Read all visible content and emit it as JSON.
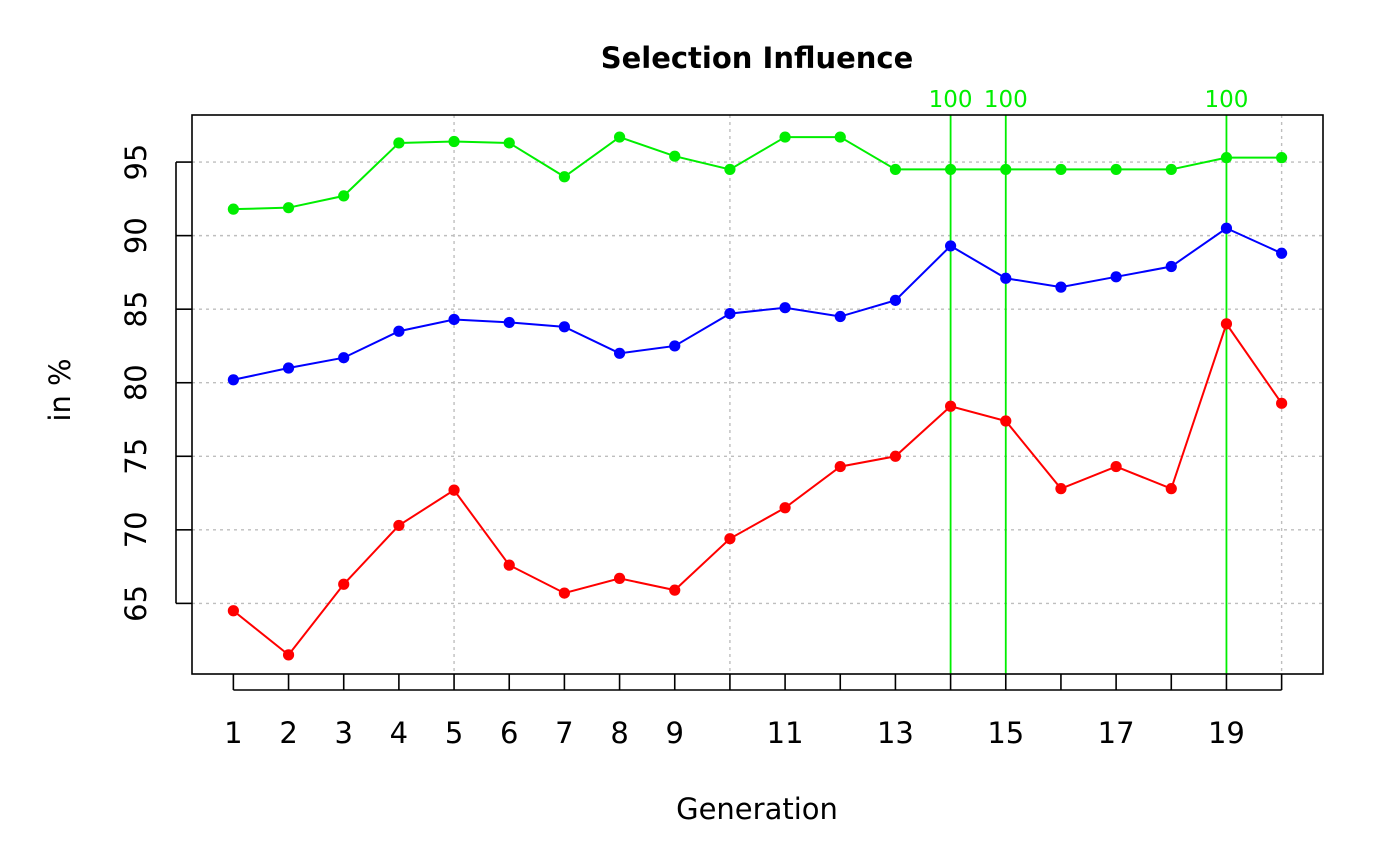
{
  "chart_data": {
    "type": "line",
    "title": "Selection Influence",
    "xlabel": "Generation",
    "ylabel": "in %",
    "xlim": [
      0.25,
      20.75
    ],
    "ylim": [
      60.2,
      98.2
    ],
    "x": [
      1,
      2,
      3,
      4,
      5,
      6,
      7,
      8,
      9,
      10,
      11,
      12,
      13,
      14,
      15,
      16,
      17,
      18,
      19,
      20
    ],
    "x_tick_labels": [
      {
        "x": 1,
        "label": "1"
      },
      {
        "x": 2,
        "label": "2"
      },
      {
        "x": 3,
        "label": "3"
      },
      {
        "x": 4,
        "label": "4"
      },
      {
        "x": 5,
        "label": "5"
      },
      {
        "x": 6,
        "label": "6"
      },
      {
        "x": 7,
        "label": "7"
      },
      {
        "x": 8,
        "label": "8"
      },
      {
        "x": 9,
        "label": "9"
      },
      {
        "x": 11,
        "label": "11"
      },
      {
        "x": 13,
        "label": "13"
      },
      {
        "x": 15,
        "label": "15"
      },
      {
        "x": 17,
        "label": "17"
      },
      {
        "x": 19,
        "label": "19"
      }
    ],
    "y_ticks": [
      65,
      70,
      75,
      80,
      85,
      90,
      95
    ],
    "grid": true,
    "grid_x": [
      5,
      10,
      15,
      20
    ],
    "series": [
      {
        "color": "#00ee00",
        "values": [
          91.8,
          91.9,
          92.7,
          96.3,
          96.4,
          96.3,
          94.0,
          96.7,
          95.4,
          94.5,
          96.7,
          96.7,
          94.5,
          94.5,
          94.5,
          94.5,
          94.5,
          94.5,
          95.3,
          95.3
        ]
      },
      {
        "color": "#0000ff",
        "values": [
          80.2,
          81.0,
          81.7,
          83.5,
          84.3,
          84.1,
          83.8,
          82.0,
          82.5,
          84.7,
          85.1,
          84.5,
          85.6,
          89.3,
          87.1,
          86.5,
          87.2,
          87.9,
          90.5,
          88.8
        ]
      },
      {
        "color": "#ff0000",
        "values": [
          64.5,
          61.5,
          66.3,
          70.3,
          72.7,
          67.6,
          65.7,
          66.7,
          65.9,
          69.4,
          71.5,
          74.3,
          75.0,
          78.4,
          77.4,
          72.8,
          74.3,
          72.8,
          84.0,
          78.6
        ]
      }
    ],
    "annotations": [
      {
        "x": 14,
        "label": "100",
        "color": "#00ee00"
      },
      {
        "x": 15,
        "label": "100",
        "color": "#00ee00"
      },
      {
        "x": 19,
        "label": "100",
        "color": "#00ee00"
      }
    ]
  }
}
